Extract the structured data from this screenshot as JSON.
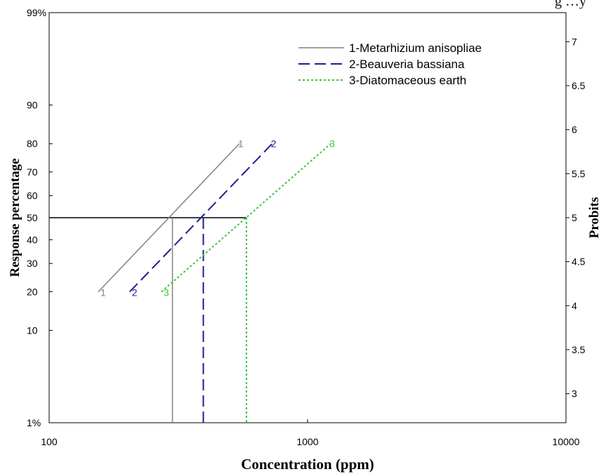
{
  "page_header_fragment": "g …y",
  "chart_data": {
    "type": "line",
    "xlabel": "Concentration (ppm)",
    "ylabel": "Response percentage",
    "y2label": "Probits",
    "x_scale": "log",
    "xlim": [
      100,
      10000
    ],
    "ylim_probit": [
      2.67,
      7.33
    ],
    "x_ticks": [
      {
        "value": 100,
        "label": "100"
      },
      {
        "value": 1000,
        "label": "1000"
      },
      {
        "value": 10000,
        "label": "10000"
      }
    ],
    "y_ticks_left": [
      {
        "probit": 2.67,
        "label": "1%"
      },
      {
        "probit": 3.72,
        "label": "10"
      },
      {
        "probit": 4.16,
        "label": "20"
      },
      {
        "probit": 4.48,
        "label": "30"
      },
      {
        "probit": 4.75,
        "label": "40"
      },
      {
        "probit": 5.0,
        "label": "50"
      },
      {
        "probit": 5.25,
        "label": "60"
      },
      {
        "probit": 5.52,
        "label": "70"
      },
      {
        "probit": 5.84,
        "label": "80"
      },
      {
        "probit": 6.28,
        "label": "90"
      },
      {
        "probit": 7.33,
        "label": "99%"
      }
    ],
    "y_ticks_right": [
      {
        "probit": 3.0,
        "label": "3"
      },
      {
        "probit": 3.5,
        "label": "3.5"
      },
      {
        "probit": 4.0,
        "label": "4"
      },
      {
        "probit": 4.5,
        "label": "4.5"
      },
      {
        "probit": 5.0,
        "label": "5"
      },
      {
        "probit": 5.5,
        "label": "5.5"
      },
      {
        "probit": 6.0,
        "label": "6"
      },
      {
        "probit": 6.5,
        "label": "6.5"
      },
      {
        "probit": 7.0,
        "label": "7"
      }
    ],
    "legend_position": "top-right",
    "series": [
      {
        "name": "1-Metarhizium anisopliae",
        "marker": "1",
        "color": "#808080",
        "dash": "solid",
        "x": [
          155,
          545
        ],
        "response_percent": [
          20,
          80
        ],
        "lc50": 300
      },
      {
        "name": "2-Beauveria bassiana",
        "marker": "2",
        "color": "#1f1f8f",
        "dash": "dashed",
        "x": [
          205,
          730
        ],
        "response_percent": [
          20,
          80
        ],
        "lc50": 395
      },
      {
        "name": "3-Diatomaceous earth",
        "marker": "3",
        "color": "#3ec43e",
        "dash": "dotted",
        "x": [
          272,
          1230
        ],
        "response_percent": [
          20,
          80
        ],
        "lc50": 580
      }
    ],
    "reference_line": {
      "response_percent": 50,
      "color": "#000000"
    }
  }
}
